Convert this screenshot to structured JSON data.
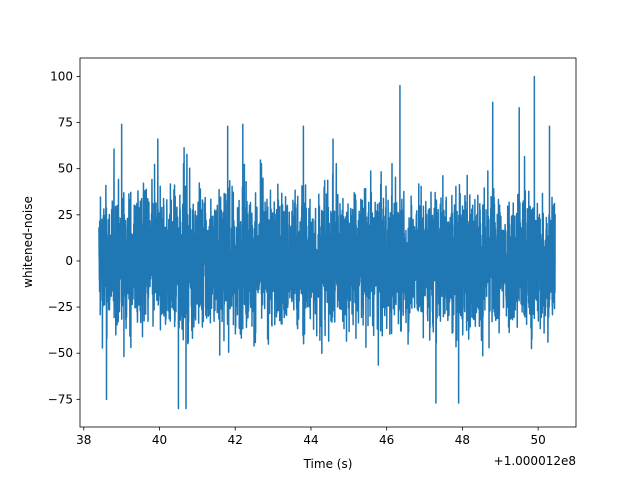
{
  "chart_data": {
    "type": "line",
    "title": "",
    "xlabel": "Time (s)",
    "ylabel": "whitened-noise",
    "x_offset_label": "+1.000012e8",
    "xlim": [
      37.9,
      51.0
    ],
    "ylim": [
      -90,
      110
    ],
    "x_ticks": [
      38,
      40,
      42,
      44,
      46,
      48,
      50
    ],
    "x_tick_labels": [
      "38",
      "40",
      "42",
      "44",
      "46",
      "48",
      "50"
    ],
    "y_ticks": [
      -75,
      -50,
      -25,
      0,
      25,
      50,
      75,
      100
    ],
    "y_tick_labels": [
      "−75",
      "−50",
      "−25",
      "0",
      "25",
      "50",
      "75",
      "100"
    ],
    "grid": false,
    "color": "#1f77b4",
    "series": [
      {
        "x_range": [
          38.4,
          50.45
        ],
        "band": [
          -40,
          40
        ],
        "peaks": [
          {
            "x": 38.6,
            "y": -75
          },
          {
            "x": 39.0,
            "y": 74
          },
          {
            "x": 40.5,
            "y": -80
          },
          {
            "x": 40.7,
            "y": -80
          },
          {
            "x": 41.8,
            "y": 73
          },
          {
            "x": 42.2,
            "y": 74
          },
          {
            "x": 43.8,
            "y": 73
          },
          {
            "x": 46.35,
            "y": 95
          },
          {
            "x": 47.3,
            "y": -77
          },
          {
            "x": 47.9,
            "y": -77
          },
          {
            "x": 48.8,
            "y": 86
          },
          {
            "x": 49.5,
            "y": 83
          },
          {
            "x": 49.9,
            "y": 100
          },
          {
            "x": 50.3,
            "y": 73
          }
        ]
      }
    ]
  }
}
